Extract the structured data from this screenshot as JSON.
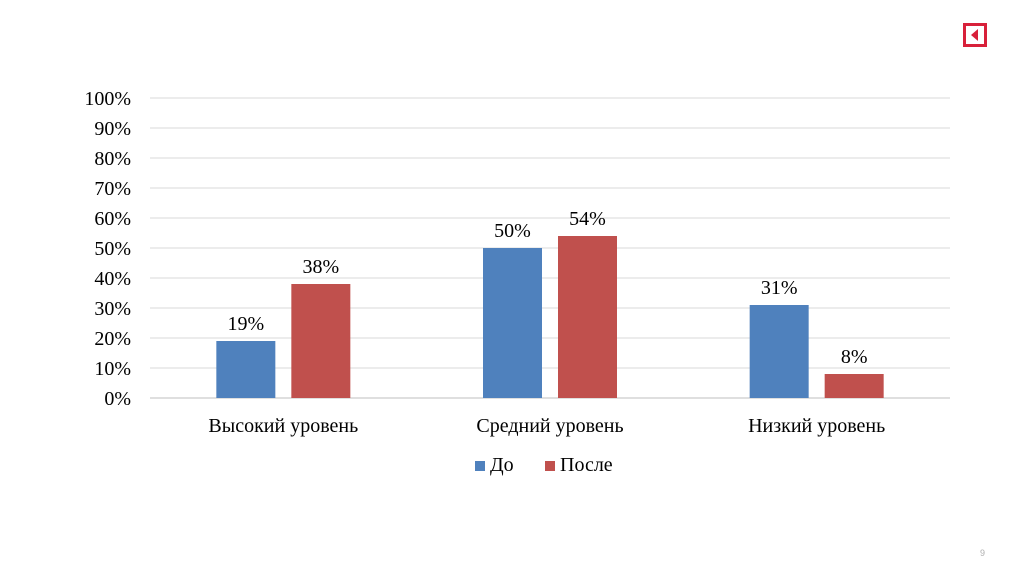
{
  "slide": {
    "page_number": "9",
    "back_icon": "back-arrow-icon"
  },
  "chart_data": {
    "type": "bar",
    "categories": [
      "Высокий уровень",
      "Средний уровень",
      "Низкий уровень"
    ],
    "series": [
      {
        "name": "До",
        "values": [
          19,
          50,
          31
        ],
        "labels": [
          "19%",
          "50%",
          "31%"
        ],
        "color": "#4f81bd"
      },
      {
        "name": "После",
        "values": [
          38,
          54,
          8
        ],
        "labels": [
          "38%",
          "54%",
          "8%"
        ],
        "color": "#c0504d"
      }
    ],
    "ylim": [
      0,
      100
    ],
    "yticks": [
      "0%",
      "10%",
      "20%",
      "30%",
      "40%",
      "50%",
      "60%",
      "70%",
      "80%",
      "90%",
      "100%"
    ],
    "grid": true,
    "legend_position": "bottom",
    "title": "",
    "xlabel": "",
    "ylabel": ""
  }
}
